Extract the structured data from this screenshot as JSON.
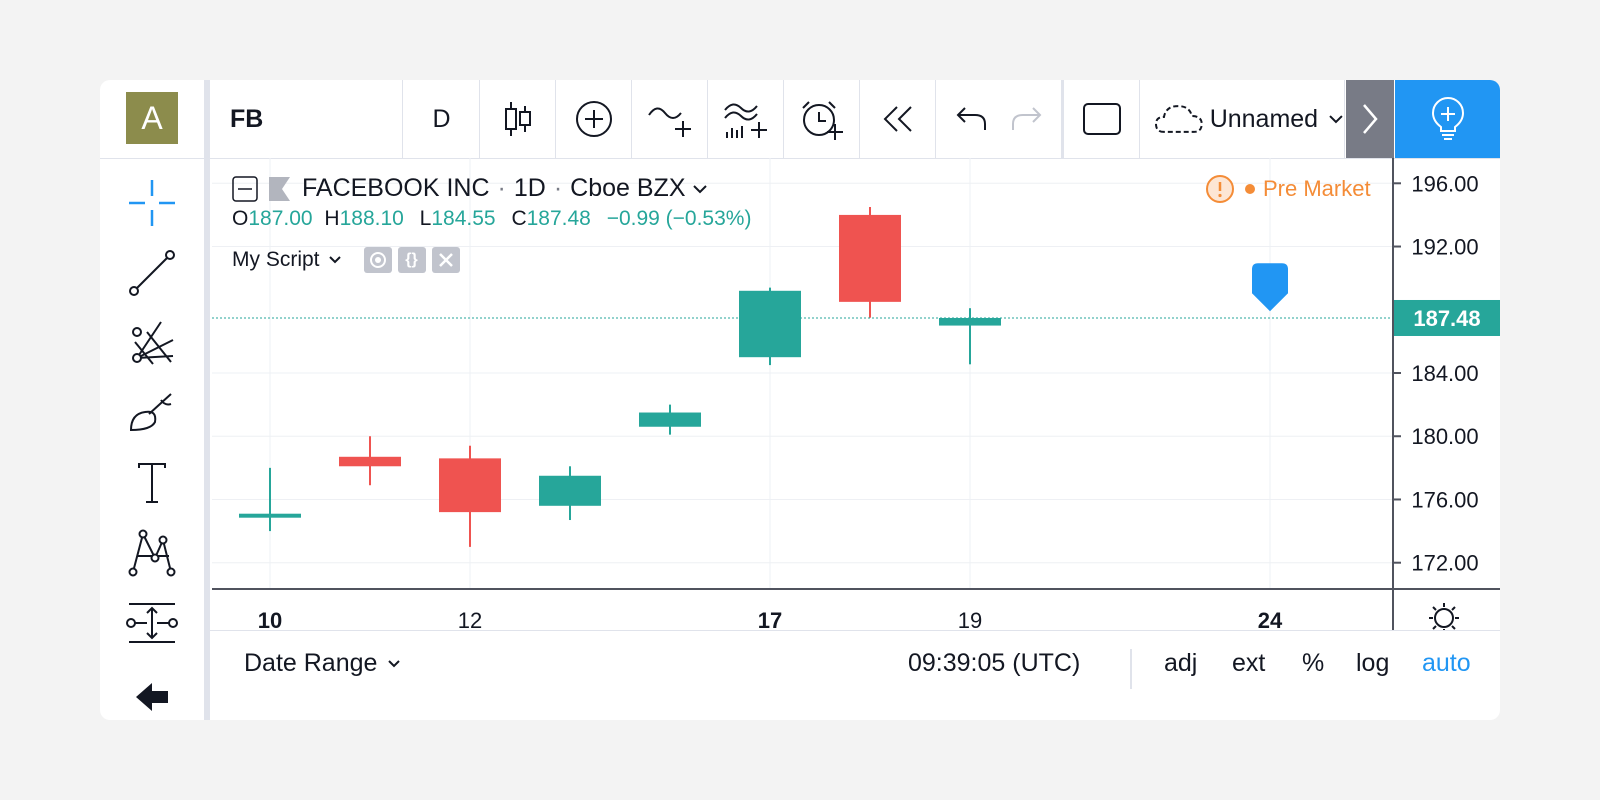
{
  "colors": {
    "up": "#26a69a",
    "down": "#ef5350",
    "accent": "#2196f3",
    "premarket": "#f48c37"
  },
  "avatar": {
    "letter": "A"
  },
  "topbar": {
    "symbol": "FB",
    "interval": "D",
    "chart_type_icon": "candles-icon",
    "compare_icon": "add-circle-icon",
    "indicators_icon": "indicators-icon",
    "templates_icon": "templates-icon",
    "alert_icon": "alarm-clock-icon",
    "replay_icon": "rewind-icon",
    "undo_icon": "undo-icon",
    "redo_icon": "redo-icon",
    "fullscreen_icon": "square-icon",
    "layout_name": "Unnamed",
    "ideas_icon": "lightbulb-icon"
  },
  "legend": {
    "title": "FACEBOOK INC",
    "interval": "1D",
    "exchange": "Cboe BZX",
    "sep": "·",
    "o_label": "O",
    "o": "187.00",
    "h_label": "H",
    "h": "188.10",
    "l_label": "L",
    "l": "184.55",
    "c_label": "C",
    "c": "187.48",
    "change": "−0.99 (−0.53%)",
    "script": "My Script"
  },
  "market_status": "Pre Market",
  "bottom": {
    "date_range": "Date Range",
    "time": "09:39:05 (UTC)",
    "adj": "adj",
    "ext": "ext",
    "pct": "%",
    "log": "log",
    "auto": "auto"
  },
  "chart_data": {
    "type": "candlestick",
    "ylim": [
      170.4,
      197.6
    ],
    "y_ticks": [
      196,
      192,
      184,
      180,
      176,
      172
    ],
    "y_tick_labels": [
      "196.00",
      "192.00",
      "184.00",
      "180.00",
      "176.00",
      "172.00"
    ],
    "last_price": 187.48,
    "last_price_label": "187.48",
    "x_ticks": [
      {
        "label": "10",
        "slot": 0,
        "bold": true
      },
      {
        "label": "12",
        "slot": 2,
        "bold": false
      },
      {
        "label": "17",
        "slot": 5,
        "bold": true
      },
      {
        "label": "19",
        "slot": 7,
        "bold": false
      },
      {
        "label": "24",
        "slot": 10,
        "bold": true
      }
    ],
    "candles": [
      {
        "slot": 0,
        "open": 174.9,
        "high": 178.0,
        "low": 174.0,
        "close": 175.1
      },
      {
        "slot": 1,
        "open": 178.7,
        "high": 180.0,
        "low": 176.9,
        "close": 178.1
      },
      {
        "slot": 2,
        "open": 178.6,
        "high": 179.4,
        "low": 173.0,
        "close": 175.2
      },
      {
        "slot": 3,
        "open": 175.6,
        "high": 178.1,
        "low": 174.7,
        "close": 177.5
      },
      {
        "slot": 4,
        "open": 180.6,
        "high": 182.0,
        "low": 180.1,
        "close": 181.5
      },
      {
        "slot": 5,
        "open": 185.0,
        "high": 189.4,
        "low": 184.5,
        "close": 189.2
      },
      {
        "slot": 6,
        "open": 194.0,
        "high": 194.5,
        "low": 187.5,
        "close": 188.5
      },
      {
        "slot": 7,
        "open": 187.0,
        "high": 188.1,
        "low": 184.55,
        "close": 187.48
      }
    ],
    "marker": {
      "slot": 10,
      "price": 189.3,
      "icon": "flag-marker-icon"
    }
  }
}
